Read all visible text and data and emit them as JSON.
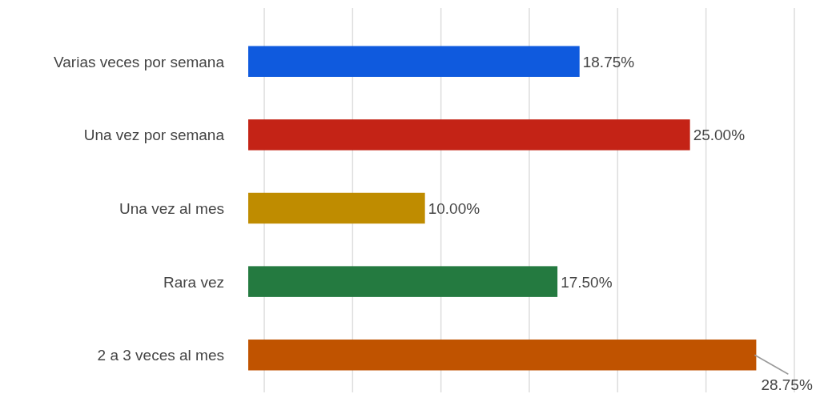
{
  "chart_data": {
    "type": "bar",
    "orientation": "horizontal",
    "categories": [
      "Varias veces por semana",
      "Una vez por semana",
      "Una vez al mes",
      "Rara vez",
      "2 a 3 veces al mes"
    ],
    "values": [
      18.75,
      25.0,
      10.0,
      17.5,
      28.75
    ],
    "colors": [
      "#0f5ade",
      "#c42316",
      "#bf8c00",
      "#247a40",
      "#c05300"
    ],
    "value_labels": [
      "18.75%",
      "25.00%",
      "10.00%",
      "17.50%",
      "28.75%"
    ],
    "tick_labels": "y",
    "grid": "x"
  }
}
